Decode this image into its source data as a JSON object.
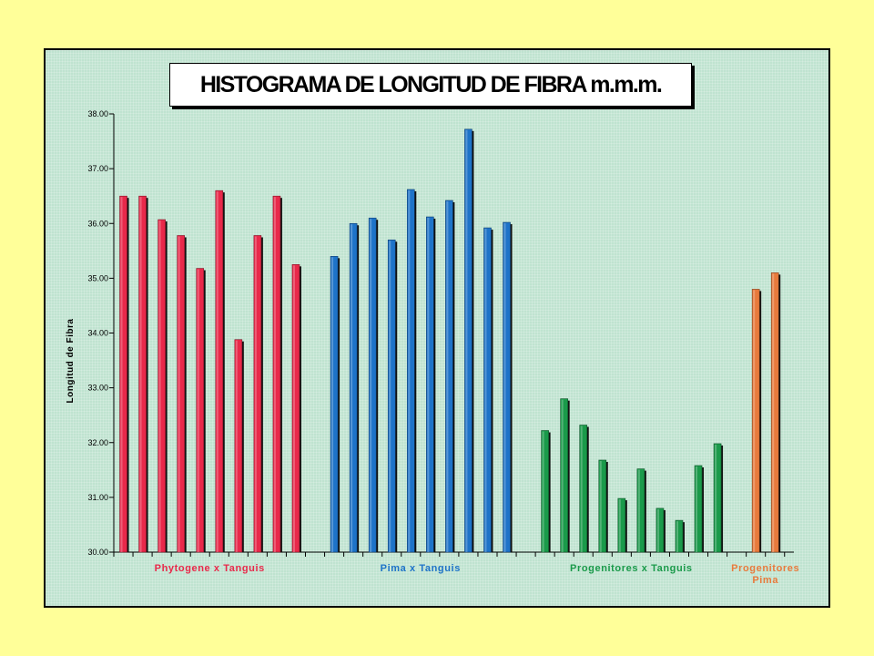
{
  "chart_data": {
    "type": "bar",
    "title": "HISTOGRAMA DE LONGITUD DE FIBRA m.m.m.",
    "ylabel": "Longitud de Fibra",
    "xlabel": "",
    "ylim": [
      30.0,
      38.0
    ],
    "yticks": [
      "30.00",
      "31.00",
      "32.00",
      "33.00",
      "34.00",
      "35.00",
      "36.00",
      "37.00",
      "38.00"
    ],
    "grid": false,
    "legend": "none",
    "series": [
      {
        "name": "Phytogene x Tanguis",
        "label_lines": [
          "Phytogene x Tanguis"
        ],
        "color": "#e8294a",
        "values": [
          36.5,
          36.5,
          36.07,
          35.78,
          35.18,
          36.6,
          33.88,
          35.78,
          36.5,
          35.25
        ]
      },
      {
        "name": "Pima x Tanguis",
        "label_lines": [
          "Pima x Tanguis"
        ],
        "color": "#1e73c8",
        "values": [
          35.4,
          36.0,
          36.1,
          35.7,
          36.62,
          36.12,
          36.42,
          37.72,
          35.92,
          36.02
        ]
      },
      {
        "name": "Progenitores x Tanguis",
        "label_lines": [
          "Progenitores x Tanguis"
        ],
        "color": "#1a9a4a",
        "values": [
          32.22,
          32.8,
          32.32,
          31.68,
          30.98,
          31.52,
          30.8,
          30.58,
          31.58,
          31.98
        ]
      },
      {
        "name": "Progenitores Pima",
        "label_lines": [
          "Progenitores",
          "Pima"
        ],
        "color": "#e87a3c",
        "values": [
          34.8,
          35.1
        ]
      }
    ]
  }
}
